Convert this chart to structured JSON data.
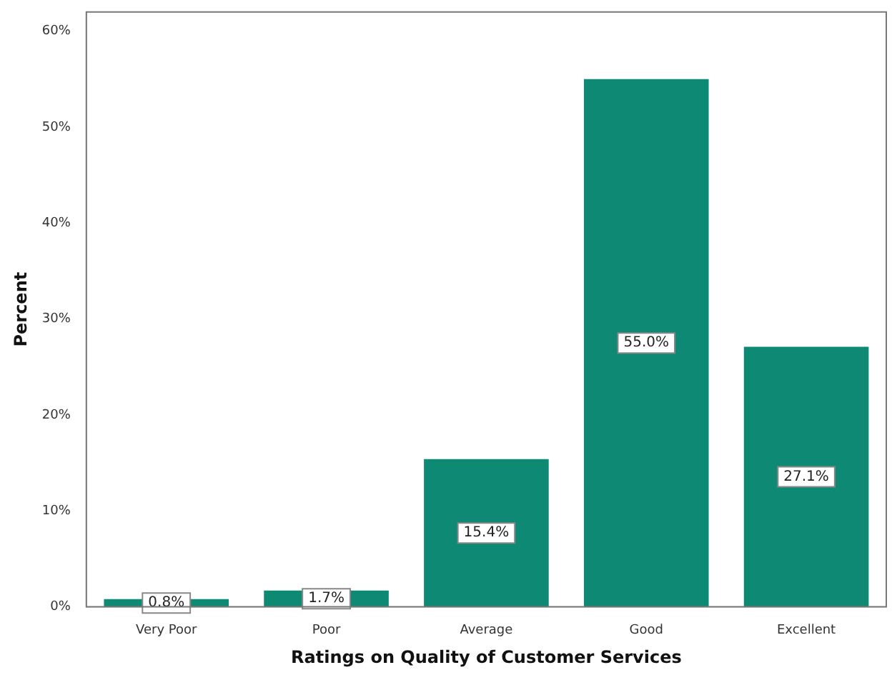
{
  "chart_data": {
    "type": "bar",
    "xlabel": "Ratings on Quality of Customer Services",
    "ylabel": "Percent",
    "categories": [
      "Very Poor",
      "Poor",
      "Average",
      "Good",
      "Excellent"
    ],
    "values": [
      0.8,
      1.7,
      15.4,
      55.0,
      27.1
    ],
    "value_labels": [
      "0.8%",
      "1.7%",
      "15.4%",
      "55.0%",
      "27.1%"
    ],
    "color": "#0e8a74",
    "ylim": [
      0,
      62
    ],
    "yticks": [
      {
        "value": 0,
        "label": "0%"
      },
      {
        "value": 10,
        "label": "10%"
      },
      {
        "value": 20,
        "label": "20%"
      },
      {
        "value": 30,
        "label": "30%"
      },
      {
        "value": 40,
        "label": "40%"
      },
      {
        "value": 50,
        "label": "50%"
      },
      {
        "value": 60,
        "label": "60%"
      }
    ],
    "grid": false,
    "legend": false
  }
}
